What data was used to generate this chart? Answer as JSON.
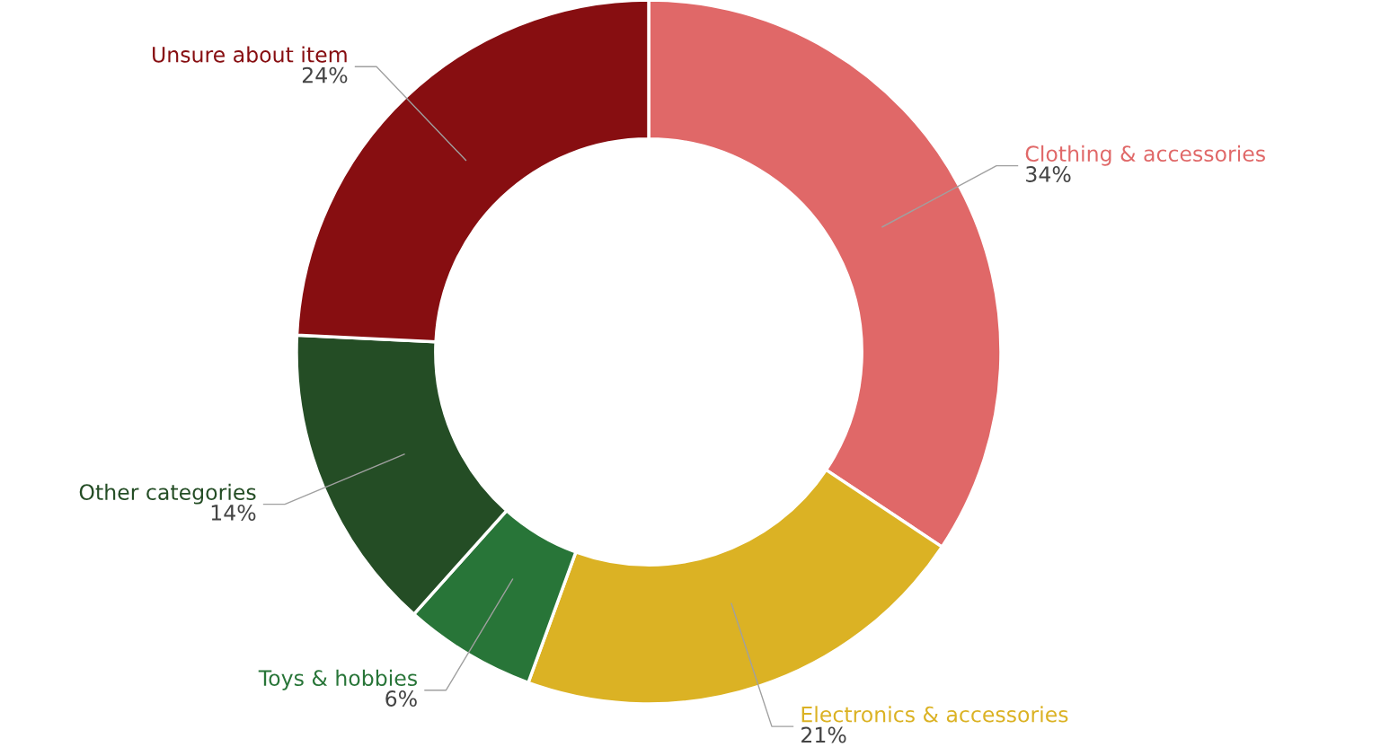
{
  "chart_data": {
    "type": "donut",
    "categories": [
      "Clothing & accessories",
      "Electronics & accessories",
      "Toys & hobbies",
      "Other categories",
      "Unsure about item"
    ],
    "values": [
      34,
      21,
      6,
      14,
      24
    ],
    "colors": [
      "#e06868",
      "#dbb224",
      "#287538",
      "#244d25",
      "#870e11"
    ],
    "value_labels": [
      "34%",
      "21%",
      "6%",
      "14%",
      "24%"
    ],
    "legend": false
  }
}
